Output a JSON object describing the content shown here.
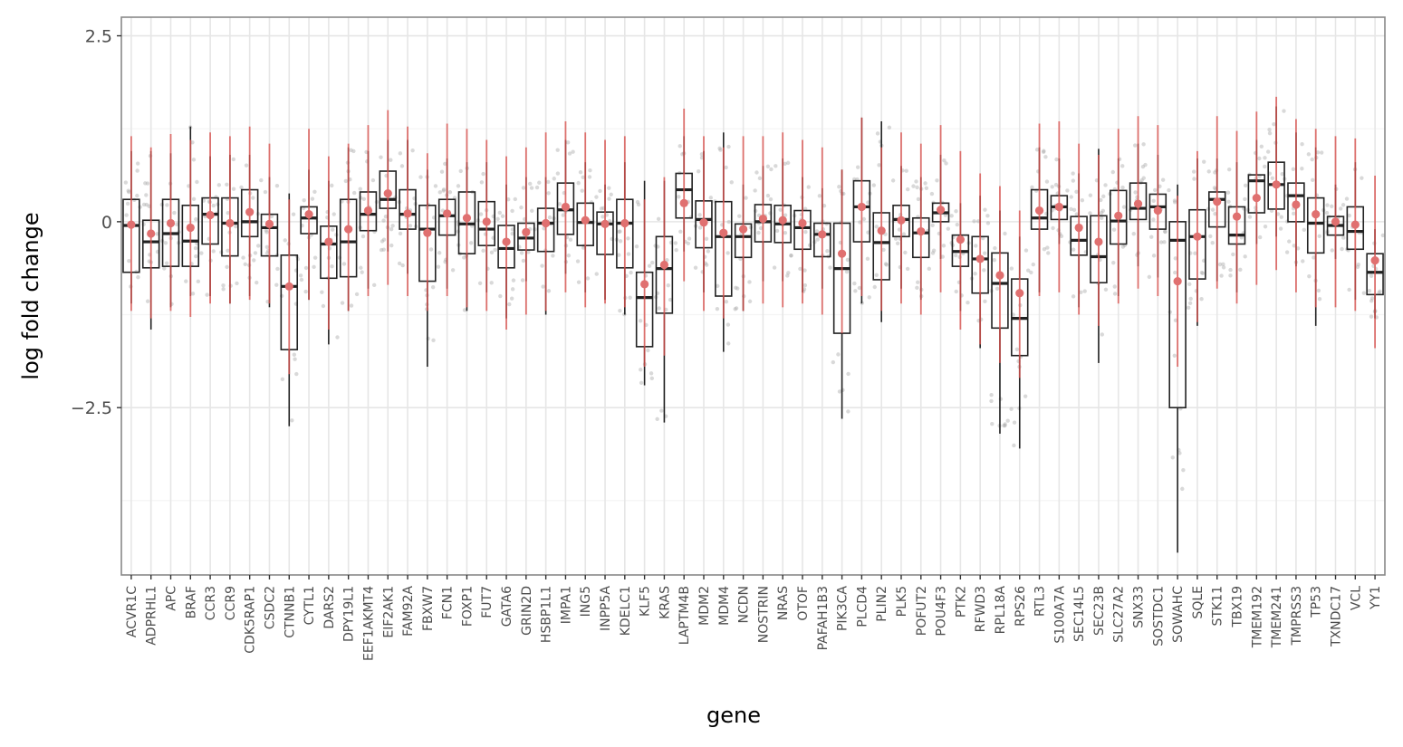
{
  "chart_data": {
    "type": "box",
    "xlabel": "gene",
    "ylabel": "log fold change",
    "ylim": [
      -4.75,
      2.75
    ],
    "yticks": [
      {
        "value": 2.5,
        "label": "2.5"
      },
      {
        "value": 0,
        "label": "0"
      },
      {
        "value": -2.5,
        "label": "−2.5"
      }
    ],
    "grid": true,
    "legend": "none",
    "colors": {
      "box": "#222222",
      "mean_point": "#e07070",
      "error_bar": "#d9534f",
      "jitter_points": "#aaaaaa",
      "grid_major": "#e6e6e6",
      "grid_minor": "#f4f4f4",
      "panel_border": "#888888"
    },
    "genes": [
      {
        "gene": "ACVR1C",
        "min": -1.1,
        "q1": -0.68,
        "median": -0.05,
        "q3": 0.3,
        "max": 0.95,
        "mean": -0.04,
        "err_lo": -1.2,
        "err_hi": 1.15
      },
      {
        "gene": "ADPRHL1",
        "min": -1.45,
        "q1": -0.62,
        "median": -0.27,
        "q3": 0.02,
        "max": 0.95,
        "mean": -0.16,
        "err_lo": -1.3,
        "err_hi": 1.0
      },
      {
        "gene": "APC",
        "min": -1.15,
        "q1": -0.6,
        "median": -0.16,
        "q3": 0.3,
        "max": 0.92,
        "mean": -0.02,
        "err_lo": -1.2,
        "err_hi": 1.18
      },
      {
        "gene": "BRAF",
        "min": -1.0,
        "q1": -0.6,
        "median": -0.26,
        "q3": 0.22,
        "max": 1.28,
        "mean": -0.08,
        "err_lo": -1.28,
        "err_hi": 1.1
      },
      {
        "gene": "CCR3",
        "min": -1.0,
        "q1": -0.3,
        "median": 0.1,
        "q3": 0.32,
        "max": 0.88,
        "mean": 0.09,
        "err_lo": -1.1,
        "err_hi": 1.2
      },
      {
        "gene": "CCR9",
        "min": -1.1,
        "q1": -0.46,
        "median": -0.02,
        "q3": 0.32,
        "max": 0.9,
        "mean": -0.02,
        "err_lo": -1.1,
        "err_hi": 1.15
      },
      {
        "gene": "CDK5RAP1",
        "min": -1.0,
        "q1": -0.2,
        "median": 0.0,
        "q3": 0.43,
        "max": 0.9,
        "mean": 0.13,
        "err_lo": -1.05,
        "err_hi": 1.28
      },
      {
        "gene": "CSDC2",
        "min": -1.15,
        "q1": -0.46,
        "median": -0.08,
        "q3": 0.1,
        "max": 0.6,
        "mean": -0.03,
        "err_lo": -1.1,
        "err_hi": 1.05
      },
      {
        "gene": "CTNNB1",
        "min": -2.75,
        "q1": -1.72,
        "median": -0.87,
        "q3": -0.45,
        "max": 0.38,
        "mean": -0.87,
        "err_lo": -2.05,
        "err_hi": 0.3
      },
      {
        "gene": "CYTL1",
        "min": -1.05,
        "q1": -0.16,
        "median": 0.05,
        "q3": 0.2,
        "max": 0.7,
        "mean": 0.1,
        "err_lo": -1.05,
        "err_hi": 1.25
      },
      {
        "gene": "DARS2",
        "min": -1.65,
        "q1": -0.76,
        "median": -0.3,
        "q3": -0.06,
        "max": 0.55,
        "mean": -0.27,
        "err_lo": -1.45,
        "err_hi": 0.88
      },
      {
        "gene": "DPY19L1",
        "min": -1.2,
        "q1": -0.74,
        "median": -0.27,
        "q3": 0.3,
        "max": 1.0,
        "mean": -0.1,
        "err_lo": -1.2,
        "err_hi": 1.05
      },
      {
        "gene": "EEF1AKMT4",
        "min": -0.9,
        "q1": -0.12,
        "median": 0.1,
        "q3": 0.4,
        "max": 0.95,
        "mean": 0.15,
        "err_lo": -1.0,
        "err_hi": 1.3
      },
      {
        "gene": "EIF2AK1",
        "min": -0.4,
        "q1": 0.18,
        "median": 0.3,
        "q3": 0.68,
        "max": 1.1,
        "mean": 0.38,
        "err_lo": -0.85,
        "err_hi": 1.5
      },
      {
        "gene": "FAM92A",
        "min": -0.7,
        "q1": -0.1,
        "median": 0.1,
        "q3": 0.43,
        "max": 1.1,
        "mean": 0.11,
        "err_lo": -1.0,
        "err_hi": 1.28
      },
      {
        "gene": "FBXW7",
        "min": -1.95,
        "q1": -0.8,
        "median": -0.1,
        "q3": 0.22,
        "max": 0.7,
        "mean": -0.15,
        "err_lo": -1.2,
        "err_hi": 0.92
      },
      {
        "gene": "FCN1",
        "min": -0.9,
        "q1": -0.18,
        "median": 0.08,
        "q3": 0.3,
        "max": 0.85,
        "mean": 0.11,
        "err_lo": -1.0,
        "err_hi": 1.32
      },
      {
        "gene": "FOXP1",
        "min": -1.2,
        "q1": -0.43,
        "median": -0.03,
        "q3": 0.4,
        "max": 0.8,
        "mean": 0.05,
        "err_lo": -1.15,
        "err_hi": 1.25
      },
      {
        "gene": "FUT7",
        "min": -0.95,
        "q1": -0.32,
        "median": -0.1,
        "q3": 0.27,
        "max": 0.8,
        "mean": 0.0,
        "err_lo": -1.2,
        "err_hi": 1.1
      },
      {
        "gene": "GATA6",
        "min": -1.3,
        "q1": -0.62,
        "median": -0.36,
        "q3": -0.05,
        "max": 0.5,
        "mean": -0.27,
        "err_lo": -1.45,
        "err_hi": 0.88
      },
      {
        "gene": "GRIN2D",
        "min": -0.8,
        "q1": -0.38,
        "median": -0.22,
        "q3": -0.02,
        "max": 0.6,
        "mean": -0.14,
        "err_lo": -1.25,
        "err_hi": 1.0
      },
      {
        "gene": "HSBP1L1",
        "min": -1.25,
        "q1": -0.4,
        "median": -0.02,
        "q3": 0.18,
        "max": 0.6,
        "mean": -0.02,
        "err_lo": -1.2,
        "err_hi": 1.2
      },
      {
        "gene": "IMPA1",
        "min": -0.7,
        "q1": -0.17,
        "median": 0.16,
        "q3": 0.52,
        "max": 1.1,
        "mean": 0.2,
        "err_lo": -0.95,
        "err_hi": 1.35
      },
      {
        "gene": "ING5",
        "min": -0.95,
        "q1": -0.32,
        "median": -0.01,
        "q3": 0.25,
        "max": 0.8,
        "mean": 0.02,
        "err_lo": -1.15,
        "err_hi": 1.2
      },
      {
        "gene": "INPP5A",
        "min": -1.05,
        "q1": -0.44,
        "median": -0.03,
        "q3": 0.13,
        "max": 0.5,
        "mean": -0.03,
        "err_lo": -1.1,
        "err_hi": 1.1
      },
      {
        "gene": "KDELC1",
        "min": -1.25,
        "q1": -0.62,
        "median": -0.02,
        "q3": 0.3,
        "max": 0.8,
        "mean": -0.02,
        "err_lo": -1.15,
        "err_hi": 1.15
      },
      {
        "gene": "KLF5",
        "min": -2.2,
        "q1": -1.68,
        "median": -1.02,
        "q3": -0.68,
        "max": 0.55,
        "mean": -0.84,
        "err_lo": -1.95,
        "err_hi": 0.3
      },
      {
        "gene": "KRAS",
        "min": -2.7,
        "q1": -1.23,
        "median": -0.63,
        "q3": -0.2,
        "max": 0.55,
        "mean": -0.58,
        "err_lo": -1.8,
        "err_hi": 0.6
      },
      {
        "gene": "LAPTM4B",
        "min": -0.4,
        "q1": 0.05,
        "median": 0.43,
        "q3": 0.65,
        "max": 1.15,
        "mean": 0.25,
        "err_lo": -0.8,
        "err_hi": 1.52
      },
      {
        "gene": "MDM2",
        "min": -0.95,
        "q1": -0.35,
        "median": 0.03,
        "q3": 0.28,
        "max": 0.95,
        "mean": -0.01,
        "err_lo": -1.2,
        "err_hi": 1.15
      },
      {
        "gene": "MDM4",
        "min": -1.75,
        "q1": -1.0,
        "median": -0.2,
        "q3": 0.27,
        "max": 1.2,
        "mean": -0.15,
        "err_lo": -1.3,
        "err_hi": 1.0
      },
      {
        "gene": "NCDN",
        "min": -1.2,
        "q1": -0.48,
        "median": -0.2,
        "q3": -0.03,
        "max": 0.5,
        "mean": -0.1,
        "err_lo": -1.2,
        "err_hi": 1.15
      },
      {
        "gene": "NOSTRIN",
        "min": -0.8,
        "q1": -0.27,
        "median": 0.0,
        "q3": 0.23,
        "max": 0.75,
        "mean": 0.04,
        "err_lo": -1.1,
        "err_hi": 1.15
      },
      {
        "gene": "NRAS",
        "min": -0.8,
        "q1": -0.28,
        "median": -0.03,
        "q3": 0.22,
        "max": 0.85,
        "mean": 0.02,
        "err_lo": -1.15,
        "err_hi": 1.2
      },
      {
        "gene": "OTOF",
        "min": -0.95,
        "q1": -0.37,
        "median": -0.08,
        "q3": 0.15,
        "max": 0.6,
        "mean": -0.02,
        "err_lo": -1.1,
        "err_hi": 1.1
      },
      {
        "gene": "PAFAH1B3",
        "min": -0.9,
        "q1": -0.47,
        "median": -0.17,
        "q3": -0.02,
        "max": 0.45,
        "mean": -0.17,
        "err_lo": -1.25,
        "err_hi": 1.0
      },
      {
        "gene": "PIK3CA",
        "min": -2.65,
        "q1": -1.5,
        "median": -0.63,
        "q3": -0.02,
        "max": 0.7,
        "mean": -0.43,
        "err_lo": -1.5,
        "err_hi": 0.7
      },
      {
        "gene": "PLCD4",
        "min": -1.1,
        "q1": -0.27,
        "median": 0.2,
        "q3": 0.55,
        "max": 1.4,
        "mean": 0.2,
        "err_lo": -1.0,
        "err_hi": 1.4
      },
      {
        "gene": "PLIN2",
        "min": -1.35,
        "q1": -0.78,
        "median": -0.28,
        "q3": 0.12,
        "max": 1.35,
        "mean": -0.12,
        "err_lo": -1.2,
        "err_hi": 1.0
      },
      {
        "gene": "PLK5",
        "min": -0.9,
        "q1": -0.2,
        "median": 0.03,
        "q3": 0.22,
        "max": 0.75,
        "mean": 0.02,
        "err_lo": -1.1,
        "err_hi": 1.2
      },
      {
        "gene": "POFUT2",
        "min": -1.05,
        "q1": -0.48,
        "median": -0.15,
        "q3": 0.05,
        "max": 0.6,
        "mean": -0.13,
        "err_lo": -1.25,
        "err_hi": 1.05
      },
      {
        "gene": "POU4F3",
        "min": -0.5,
        "q1": 0.0,
        "median": 0.12,
        "q3": 0.25,
        "max": 0.9,
        "mean": 0.16,
        "err_lo": -0.95,
        "err_hi": 1.3
      },
      {
        "gene": "PTK2",
        "min": -1.2,
        "q1": -0.6,
        "median": -0.4,
        "q3": -0.18,
        "max": 0.25,
        "mean": -0.24,
        "err_lo": -1.45,
        "err_hi": 0.95
      },
      {
        "gene": "RFWD3",
        "min": -1.7,
        "q1": -0.96,
        "median": -0.5,
        "q3": -0.2,
        "max": 0.35,
        "mean": -0.5,
        "err_lo": -1.65,
        "err_hi": 0.65
      },
      {
        "gene": "RPL18A",
        "min": -2.85,
        "q1": -1.43,
        "median": -0.83,
        "q3": -0.42,
        "max": 0.15,
        "mean": -0.72,
        "err_lo": -1.9,
        "err_hi": 0.48
      },
      {
        "gene": "RPS26",
        "min": -3.05,
        "q1": -1.8,
        "median": -1.3,
        "q3": -0.77,
        "max": -0.2,
        "mean": -0.96,
        "err_lo": -2.1,
        "err_hi": 0.15
      },
      {
        "gene": "RTL3",
        "min": -0.95,
        "q1": -0.1,
        "median": 0.05,
        "q3": 0.43,
        "max": 1.0,
        "mean": 0.15,
        "err_lo": -1.0,
        "err_hi": 1.32
      },
      {
        "gene": "S100A7A",
        "min": -0.3,
        "q1": 0.03,
        "median": 0.2,
        "q3": 0.35,
        "max": 0.85,
        "mean": 0.2,
        "err_lo": -0.95,
        "err_hi": 1.35
      },
      {
        "gene": "SEC14L5",
        "min": -1.15,
        "q1": -0.45,
        "median": -0.25,
        "q3": 0.07,
        "max": 0.65,
        "mean": -0.08,
        "err_lo": -1.25,
        "err_hi": 1.05
      },
      {
        "gene": "SEC23B",
        "min": -1.9,
        "q1": -0.82,
        "median": -0.47,
        "q3": 0.08,
        "max": 0.98,
        "mean": -0.27,
        "err_lo": -1.4,
        "err_hi": 0.9
      },
      {
        "gene": "SLC27A2",
        "min": -1.0,
        "q1": -0.3,
        "median": 0.01,
        "q3": 0.42,
        "max": 0.85,
        "mean": 0.08,
        "err_lo": -1.1,
        "err_hi": 1.25
      },
      {
        "gene": "SNX33",
        "min": -0.6,
        "q1": 0.03,
        "median": 0.18,
        "q3": 0.52,
        "max": 1.05,
        "mean": 0.24,
        "err_lo": -0.9,
        "err_hi": 1.42
      },
      {
        "gene": "SOSTDC1",
        "min": -0.75,
        "q1": -0.1,
        "median": 0.2,
        "q3": 0.37,
        "max": 0.9,
        "mean": 0.15,
        "err_lo": -1.0,
        "err_hi": 1.3
      },
      {
        "gene": "SOWAHC",
        "min": -4.45,
        "q1": -2.5,
        "median": -0.25,
        "q3": 0.0,
        "max": 0.5,
        "mean": -0.8,
        "err_lo": -1.95,
        "err_hi": 0.35
      },
      {
        "gene": "SQLE",
        "min": -1.4,
        "q1": -0.77,
        "median": -0.2,
        "q3": 0.16,
        "max": 0.85,
        "mean": -0.2,
        "err_lo": -1.35,
        "err_hi": 0.95
      },
      {
        "gene": "STK11",
        "min": -0.8,
        "q1": -0.07,
        "median": 0.3,
        "q3": 0.4,
        "max": 0.85,
        "mean": 0.27,
        "err_lo": -0.9,
        "err_hi": 1.42
      },
      {
        "gene": "TBX19",
        "min": -0.95,
        "q1": -0.3,
        "median": -0.18,
        "q3": 0.2,
        "max": 0.8,
        "mean": 0.07,
        "err_lo": -1.1,
        "err_hi": 1.22
      },
      {
        "gene": "TMEM192",
        "min": -0.3,
        "q1": 0.12,
        "median": 0.55,
        "q3": 0.63,
        "max": 1.1,
        "mean": 0.32,
        "err_lo": -0.85,
        "err_hi": 1.48
      },
      {
        "gene": "TMEM241",
        "min": -0.2,
        "q1": 0.17,
        "median": 0.5,
        "q3": 0.8,
        "max": 1.55,
        "mean": 0.5,
        "err_lo": -0.65,
        "err_hi": 1.68
      },
      {
        "gene": "TMPRSS3",
        "min": -0.6,
        "q1": 0.0,
        "median": 0.35,
        "q3": 0.52,
        "max": 1.2,
        "mean": 0.23,
        "err_lo": -0.95,
        "err_hi": 1.38
      },
      {
        "gene": "TP53",
        "min": -1.4,
        "q1": -0.42,
        "median": -0.02,
        "q3": 0.32,
        "max": 1.0,
        "mean": 0.1,
        "err_lo": -1.15,
        "err_hi": 1.25
      },
      {
        "gene": "TXNDC17",
        "min": -0.5,
        "q1": -0.18,
        "median": -0.05,
        "q3": 0.07,
        "max": 0.5,
        "mean": 0.0,
        "err_lo": -1.15,
        "err_hi": 1.15
      },
      {
        "gene": "VCL",
        "min": -1.05,
        "q1": -0.37,
        "median": -0.13,
        "q3": 0.2,
        "max": 0.8,
        "mean": -0.04,
        "err_lo": -1.2,
        "err_hi": 1.12
      },
      {
        "gene": "YY1",
        "min": -1.3,
        "q1": -0.98,
        "median": -0.68,
        "q3": -0.43,
        "max": -0.1,
        "mean": -0.52,
        "err_lo": -1.7,
        "err_hi": 0.62
      }
    ]
  }
}
